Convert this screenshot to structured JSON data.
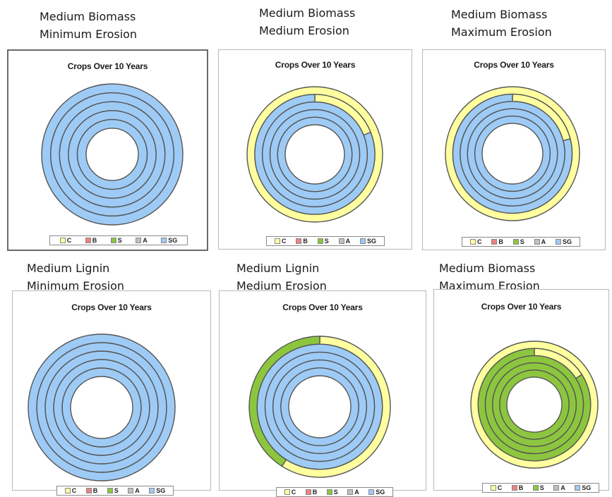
{
  "colors": {
    "C": "#ffff9f",
    "B": "#f08080",
    "S": "#8cc63f",
    "A": "#c0c0c0",
    "SG": "#9ecbf5",
    "ring_stroke": "#555555"
  },
  "legend_items": [
    "C",
    "B",
    "S",
    "A",
    "SG"
  ],
  "chart_data": [
    {
      "type": "donut",
      "heading": [
        "Medium Biomass",
        "Minimum Erosion"
      ],
      "title": "Crops Over 10 Years",
      "rings": [
        {
          "segments": [
            {
              "crop": "SG",
              "value": 10
            }
          ]
        },
        {
          "segments": [
            {
              "crop": "SG",
              "value": 10
            }
          ]
        },
        {
          "segments": [
            {
              "crop": "SG",
              "value": 10
            }
          ]
        },
        {
          "segments": [
            {
              "crop": "SG",
              "value": 10
            }
          ]
        },
        {
          "segments": [
            {
              "crop": "SG",
              "value": 10
            }
          ]
        }
      ]
    },
    {
      "type": "donut",
      "heading": [
        "Medium Biomass",
        "Medium Erosion"
      ],
      "title": "Crops Over 10 Years",
      "rings": [
        {
          "segments": [
            {
              "crop": "SG",
              "value": 10
            }
          ]
        },
        {
          "segments": [
            {
              "crop": "SG",
              "value": 10
            }
          ]
        },
        {
          "segments": [
            {
              "crop": "SG",
              "value": 10
            }
          ]
        },
        {
          "segments": [
            {
              "crop": "C",
              "value": 1.9
            },
            {
              "crop": "SG",
              "value": 8.1
            }
          ]
        },
        {
          "segments": [
            {
              "crop": "C",
              "value": 10
            }
          ]
        }
      ]
    },
    {
      "type": "donut",
      "heading": [
        "Medium Biomass",
        "Maximum Erosion"
      ],
      "title": "Crops Over 10 Years",
      "rings": [
        {
          "segments": [
            {
              "crop": "SG",
              "value": 10
            }
          ]
        },
        {
          "segments": [
            {
              "crop": "SG",
              "value": 10
            }
          ]
        },
        {
          "segments": [
            {
              "crop": "SG",
              "value": 10
            }
          ]
        },
        {
          "segments": [
            {
              "crop": "C",
              "value": 2.1
            },
            {
              "crop": "SG",
              "value": 7.9
            }
          ]
        },
        {
          "segments": [
            {
              "crop": "C",
              "value": 10
            }
          ]
        }
      ]
    },
    {
      "type": "donut",
      "heading": [
        "Medium Lignin",
        "Minimum Erosion"
      ],
      "title": "Crops Over 10 Years",
      "rings": [
        {
          "segments": [
            {
              "crop": "SG",
              "value": 10
            }
          ]
        },
        {
          "segments": [
            {
              "crop": "SG",
              "value": 10
            }
          ]
        },
        {
          "segments": [
            {
              "crop": "SG",
              "value": 10
            }
          ]
        },
        {
          "segments": [
            {
              "crop": "SG",
              "value": 10
            }
          ]
        },
        {
          "segments": [
            {
              "crop": "SG",
              "value": 10
            }
          ]
        }
      ]
    },
    {
      "type": "donut",
      "heading": [
        "Medium Lignin",
        "Medium Erosion"
      ],
      "title": "Crops Over 10 Years",
      "rings": [
        {
          "segments": [
            {
              "crop": "SG",
              "value": 10
            }
          ]
        },
        {
          "segments": [
            {
              "crop": "SG",
              "value": 10
            }
          ]
        },
        {
          "segments": [
            {
              "crop": "SG",
              "value": 10
            }
          ]
        },
        {
          "segments": [
            {
              "crop": "SG",
              "value": 10
            }
          ]
        },
        {
          "segments": [
            {
              "crop": "C",
              "value": 5.9
            },
            {
              "crop": "S",
              "value": 4.1
            }
          ]
        }
      ]
    },
    {
      "type": "donut",
      "heading": [
        "Medium Biomass",
        "Maximum Erosion"
      ],
      "title": "Crops Over 10 Years",
      "rings": [
        {
          "segments": [
            {
              "crop": "S",
              "value": 10
            }
          ]
        },
        {
          "segments": [
            {
              "crop": "S",
              "value": 10
            }
          ]
        },
        {
          "segments": [
            {
              "crop": "S",
              "value": 10
            }
          ]
        },
        {
          "segments": [
            {
              "crop": "C",
              "value": 1.6
            },
            {
              "crop": "S",
              "value": 8.4
            }
          ]
        },
        {
          "segments": [
            {
              "crop": "C",
              "value": 10
            }
          ]
        }
      ]
    }
  ]
}
